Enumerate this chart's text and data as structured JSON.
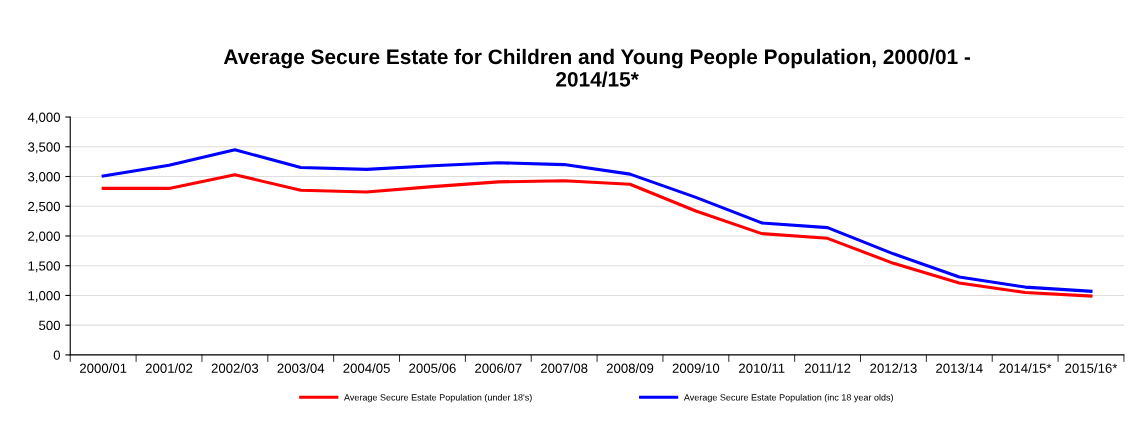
{
  "chart_data": {
    "type": "line",
    "title": "Average Secure Estate for Children and Young People Population, 2000/01 -\n2014/15*",
    "categories": [
      "2000/01",
      "2001/02",
      "2002/03",
      "2003/04",
      "2004/05",
      "2005/06",
      "2006/07",
      "2007/08",
      "2008/09",
      "2009/10",
      "2010/11",
      "2011/12",
      "2012/13",
      "2013/14",
      "2014/15*",
      "2015/16*"
    ],
    "series": [
      {
        "name": "Average Secure Estate Population (under 18's)",
        "color": "#ff0000",
        "values": [
          2800,
          2800,
          3030,
          2770,
          2740,
          2830,
          2910,
          2930,
          2870,
          2420,
          2040,
          1960,
          1540,
          1210,
          1050,
          990
        ]
      },
      {
        "name": "Average Secure Estate Population (inc 18 year olds)",
        "color": "#0000ff",
        "values": [
          3010,
          3190,
          3450,
          3150,
          3120,
          3180,
          3230,
          3200,
          3040,
          2650,
          2220,
          2140,
          1700,
          1310,
          1140,
          1070
        ]
      }
    ],
    "ylim": [
      0,
      4000
    ],
    "yticks": [
      0,
      {
        "value": 500,
        "label": "500"
      },
      {
        "value": 1000,
        "label": "1,000"
      },
      {
        "value": 1500,
        "label": "1,500"
      },
      {
        "value": 2000,
        "label": "2,000"
      },
      {
        "value": 2500,
        "label": "2,500"
      },
      {
        "value": 3000,
        "label": "3,000"
      },
      {
        "value": 3500,
        "label": "3,500"
      },
      {
        "value": 4000,
        "label": "4,000"
      }
    ],
    "grid": "y",
    "legend": "bottom",
    "marker": "none",
    "line_style": "solid"
  }
}
